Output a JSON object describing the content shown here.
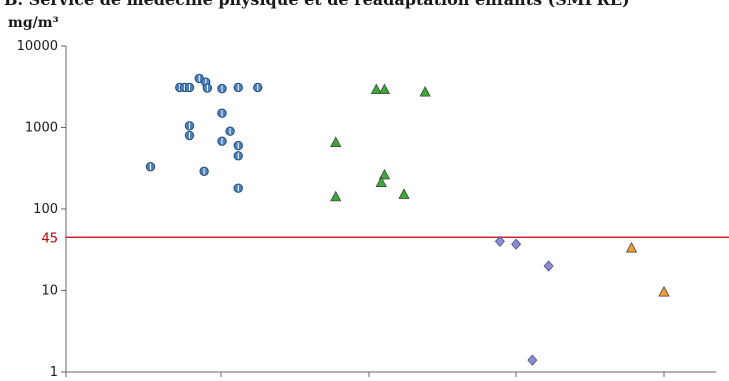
{
  "chart_data": {
    "type": "scatter",
    "title": "B. Service de médecine physique et de réadaptation enfants (SMPRE)",
    "ylabel": "mg/m³",
    "yscale": "log",
    "ylim": [
      1,
      10000
    ],
    "yticks": [
      {
        "value": 1,
        "label": "1"
      },
      {
        "value": 10,
        "label": "10"
      },
      {
        "value": 100,
        "label": "100"
      },
      {
        "value": 1000,
        "label": "1000"
      },
      {
        "value": 10000,
        "label": "10000"
      }
    ],
    "reference_line": {
      "value": 45,
      "label": "45",
      "color": "#c00000"
    },
    "xlim": [
      0,
      4
    ],
    "series": [
      {
        "marker": "circle",
        "color": "#4f81bd",
        "points": [
          {
            "x": 0.7,
            "y": 3100
          },
          {
            "x": 0.73,
            "y": 3100
          },
          {
            "x": 0.76,
            "y": 3100
          },
          {
            "x": 0.82,
            "y": 4000
          },
          {
            "x": 0.86,
            "y": 3600
          },
          {
            "x": 0.87,
            "y": 3050
          },
          {
            "x": 0.96,
            "y": 3000
          },
          {
            "x": 1.06,
            "y": 3100
          },
          {
            "x": 1.18,
            "y": 3100
          },
          {
            "x": 0.76,
            "y": 1050
          },
          {
            "x": 0.76,
            "y": 800
          },
          {
            "x": 0.96,
            "y": 1500
          },
          {
            "x": 1.01,
            "y": 900
          },
          {
            "x": 0.96,
            "y": 680
          },
          {
            "x": 1.06,
            "y": 600
          },
          {
            "x": 1.06,
            "y": 450
          },
          {
            "x": 0.52,
            "y": 330
          },
          {
            "x": 0.85,
            "y": 290
          },
          {
            "x": 1.06,
            "y": 180
          }
        ]
      },
      {
        "marker": "triangle",
        "color": "#3aaa35",
        "points": [
          {
            "x": 1.66,
            "y": 650
          },
          {
            "x": 1.66,
            "y": 140
          },
          {
            "x": 1.91,
            "y": 2900
          },
          {
            "x": 1.96,
            "y": 2900
          },
          {
            "x": 2.21,
            "y": 2700
          },
          {
            "x": 1.96,
            "y": 260
          },
          {
            "x": 1.94,
            "y": 210
          },
          {
            "x": 2.08,
            "y": 150
          }
        ]
      },
      {
        "marker": "diamond",
        "color": "#8c8cd1",
        "points": [
          {
            "x": 2.67,
            "y": 40
          },
          {
            "x": 2.77,
            "y": 37
          },
          {
            "x": 2.97,
            "y": 20
          },
          {
            "x": 2.87,
            "y": 1.4
          }
        ]
      },
      {
        "marker": "triangle",
        "color": "#f39c33",
        "points": [
          {
            "x": 3.48,
            "y": 33
          },
          {
            "x": 3.68,
            "y": 9.5
          }
        ]
      }
    ]
  }
}
